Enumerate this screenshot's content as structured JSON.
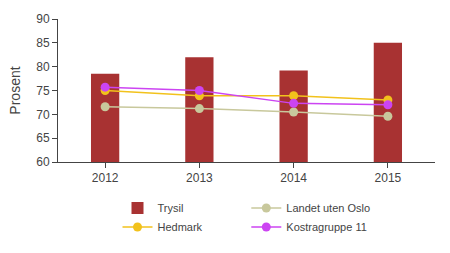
{
  "chart_data": {
    "type": "bar",
    "y_label": "Prosent",
    "categories": [
      "2012",
      "2013",
      "2014",
      "2015"
    ],
    "series": [
      {
        "name": "Trysil",
        "type": "bar",
        "color": "#a83232",
        "values": [
          78.5,
          82,
          79.2,
          85
        ]
      },
      {
        "name": "Landet uten Oslo",
        "type": "line",
        "color": "#c8c89c",
        "marker": "circle",
        "line_style": "solid",
        "values": [
          71.6,
          71.2,
          70.5,
          69.6
        ]
      },
      {
        "name": "Hedmark",
        "type": "line",
        "color": "#f2c21c",
        "marker": "circle",
        "line_style": "solid",
        "values": [
          75,
          73.9,
          73.9,
          73
        ]
      },
      {
        "name": "Kostragruppe 11",
        "type": "line",
        "color": "#cc44f2",
        "marker": "circle",
        "line_style": "solid",
        "values": [
          75.7,
          75,
          72.3,
          72
        ]
      }
    ],
    "ylim": [
      60,
      90
    ],
    "yticks": [
      60,
      65,
      70,
      75,
      80,
      85,
      90
    ],
    "grid": false,
    "legend": "bottom"
  }
}
